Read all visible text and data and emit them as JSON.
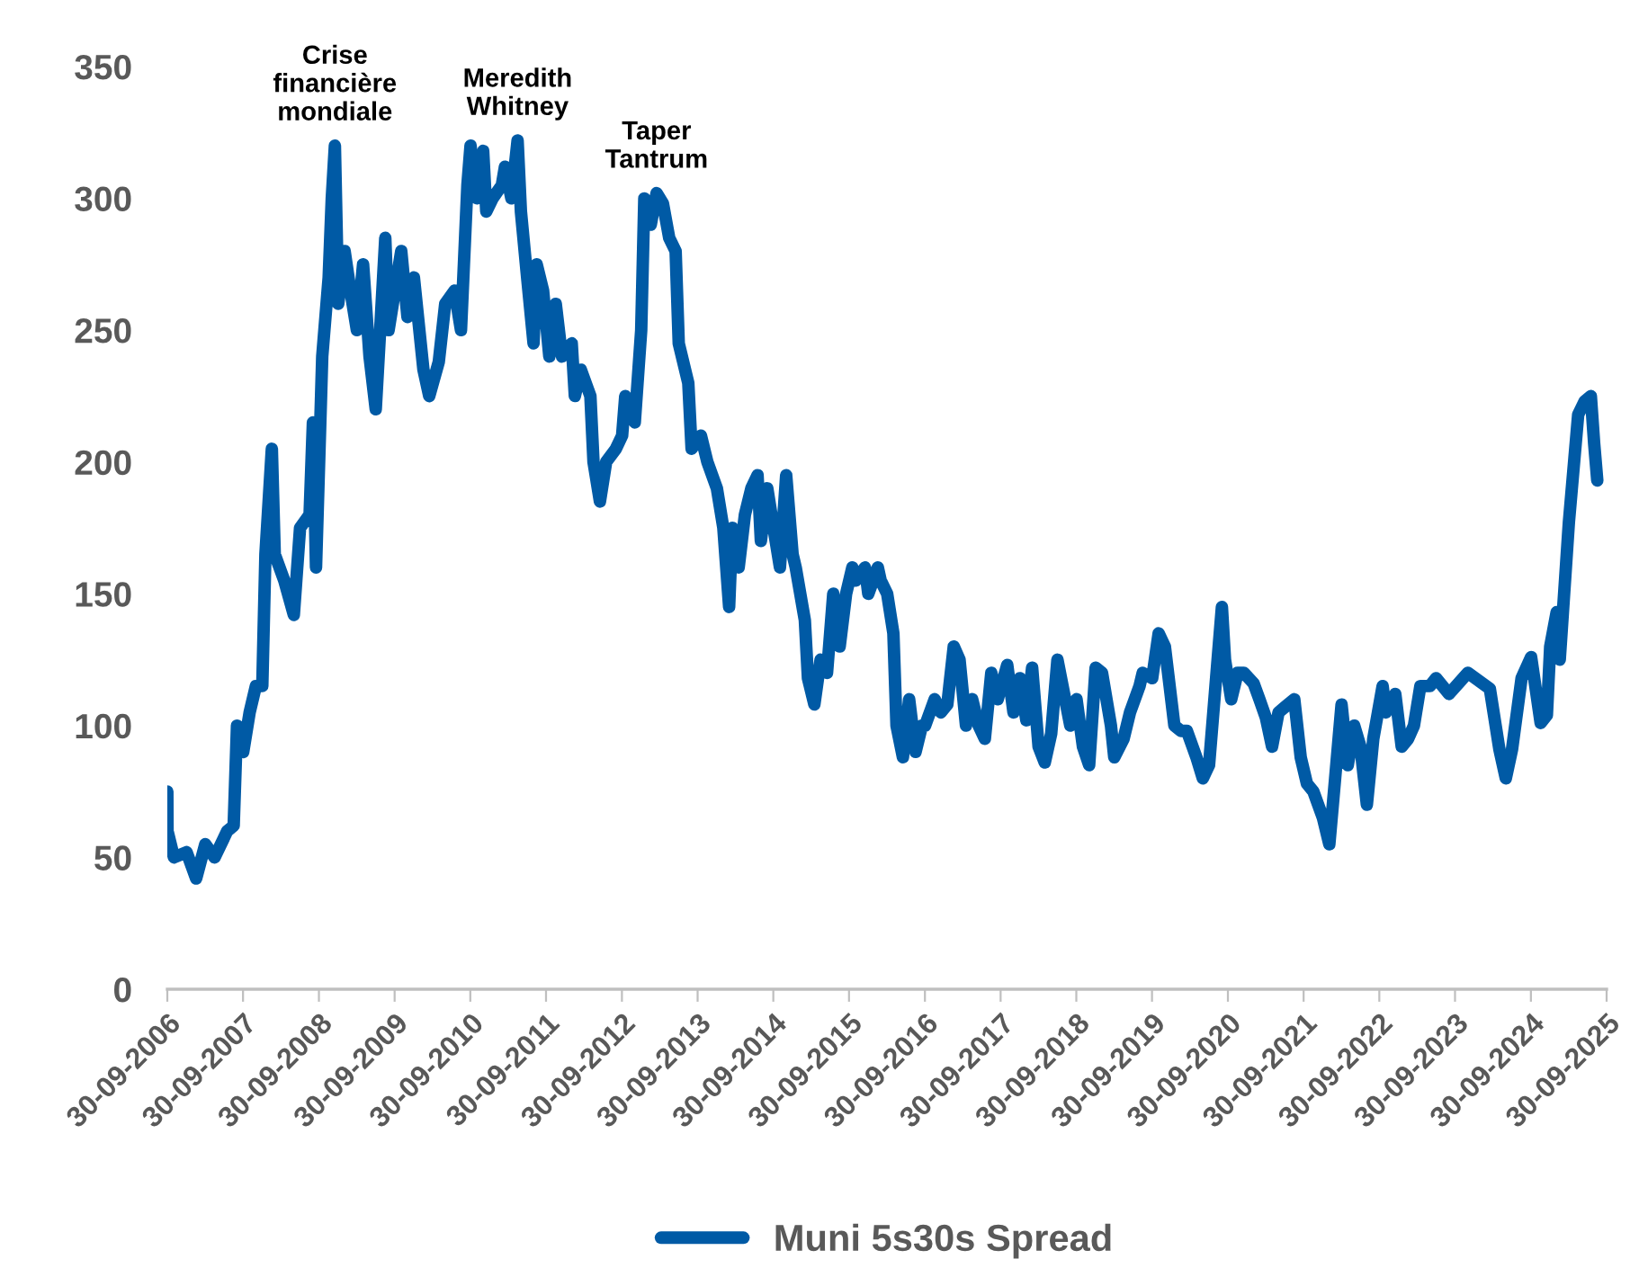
{
  "chart_data": {
    "type": "line",
    "legend": "bottom",
    "grid": false,
    "marker": "none",
    "line_style": "solid",
    "ylim": [
      0,
      350
    ],
    "yticks": [
      0,
      50,
      100,
      150,
      200,
      250,
      300,
      350
    ],
    "xlim": [
      "2006-09-30",
      "2025-09-30"
    ],
    "xticks": [
      {
        "value": "2006-09-30",
        "label": "30-09-2006"
      },
      {
        "value": "2007-09-30",
        "label": "30-09-2007"
      },
      {
        "value": "2008-09-30",
        "label": "30-09-2008"
      },
      {
        "value": "2009-09-30",
        "label": "30-09-2009"
      },
      {
        "value": "2010-09-30",
        "label": "30-09-2010"
      },
      {
        "value": "2011-09-30",
        "label": "30-09-2011"
      },
      {
        "value": "2012-09-30",
        "label": "30-09-2012"
      },
      {
        "value": "2013-09-30",
        "label": "30-09-2013"
      },
      {
        "value": "2014-09-30",
        "label": "30-09-2014"
      },
      {
        "value": "2015-09-30",
        "label": "30-09-2015"
      },
      {
        "value": "2016-09-30",
        "label": "30-09-2016"
      },
      {
        "value": "2017-09-30",
        "label": "30-09-2017"
      },
      {
        "value": "2018-09-30",
        "label": "30-09-2018"
      },
      {
        "value": "2019-09-30",
        "label": "30-09-2019"
      },
      {
        "value": "2020-09-30",
        "label": "30-09-2020"
      },
      {
        "value": "2021-09-30",
        "label": "30-09-2021"
      },
      {
        "value": "2022-09-30",
        "label": "30-09-2022"
      },
      {
        "value": "2023-09-30",
        "label": "30-09-2023"
      },
      {
        "value": "2024-09-30",
        "label": "30-09-2024"
      },
      {
        "value": "2025-09-30",
        "label": "30-09-2025"
      }
    ],
    "annotations": [
      {
        "text": "Crise\nfinancière\nmondiale",
        "x": "2008-12-16",
        "y": 320
      },
      {
        "text": "Meredith\nWhitney",
        "x": "2011-05-16",
        "y": 322
      },
      {
        "text": "Taper\nTantrum",
        "x": "2013-03-16",
        "y": 302
      }
    ],
    "series": [
      {
        "name": "Muni 5s30s Spread",
        "color": "#005aa5",
        "x": [
          "2006-09-30",
          "2006-10-01",
          "2006-11-01",
          "2007-01-01",
          "2007-02-16",
          "2007-04-01",
          "2007-05-16",
          "2007-07-16",
          "2007-08-16",
          "2007-09-01",
          "2007-10-01",
          "2007-11-01",
          "2007-12-01",
          "2008-01-01",
          "2008-01-16",
          "2008-02-16",
          "2008-03-01",
          "2008-04-16",
          "2008-06-01",
          "2008-07-01",
          "2008-08-16",
          "2008-09-01",
          "2008-09-16",
          "2008-10-16",
          "2008-11-16",
          "2008-12-01",
          "2008-12-16",
          "2009-01-01",
          "2009-02-01",
          "2009-03-01",
          "2009-04-01",
          "2009-05-01",
          "2009-06-01",
          "2009-07-01",
          "2009-08-16",
          "2009-09-01",
          "2009-11-01",
          "2009-12-01",
          "2010-01-01",
          "2010-02-16",
          "2010-03-16",
          "2010-05-01",
          "2010-06-01",
          "2010-07-16",
          "2010-08-16",
          "2010-09-16",
          "2010-10-01",
          "2010-11-01",
          "2010-12-01",
          "2010-12-16",
          "2011-01-16",
          "2011-03-01",
          "2011-03-16",
          "2011-04-16",
          "2011-05-16",
          "2011-06-01",
          "2011-07-01",
          "2011-08-01",
          "2011-08-16",
          "2011-09-16",
          "2011-10-16",
          "2011-11-16",
          "2011-12-16",
          "2012-02-01",
          "2012-02-16",
          "2012-03-16",
          "2012-05-01",
          "2012-05-16",
          "2012-06-16",
          "2012-07-16",
          "2012-09-01",
          "2012-10-01",
          "2012-10-16",
          "2012-12-01",
          "2013-01-01",
          "2013-01-16",
          "2013-02-16",
          "2013-03-16",
          "2013-04-16",
          "2013-05-16",
          "2013-06-16",
          "2013-07-01",
          "2013-08-16",
          "2013-09-01",
          "2013-10-16",
          "2013-11-16",
          "2014-01-01",
          "2014-02-01",
          "2014-03-01",
          "2014-03-16",
          "2014-04-16",
          "2014-05-16",
          "2014-06-16",
          "2014-07-16",
          "2014-08-01",
          "2014-09-01",
          "2014-10-01",
          "2014-11-01",
          "2014-12-01",
          "2015-01-01",
          "2015-01-16",
          "2015-03-01",
          "2015-03-16",
          "2015-04-16",
          "2015-05-16",
          "2015-06-16",
          "2015-07-16",
          "2015-08-16",
          "2015-09-16",
          "2015-10-16",
          "2015-11-01",
          "2015-12-16",
          "2016-01-01",
          "2016-02-16",
          "2016-03-01",
          "2016-04-01",
          "2016-05-01",
          "2016-05-16",
          "2016-06-16",
          "2016-07-16",
          "2016-08-16",
          "2016-09-16",
          "2016-10-01",
          "2016-11-16",
          "2016-12-16",
          "2017-01-16",
          "2017-02-16",
          "2017-03-16",
          "2017-04-16",
          "2017-05-16",
          "2017-06-16",
          "2017-07-16",
          "2017-08-16",
          "2017-09-16",
          "2017-11-01",
          "2017-12-01",
          "2018-01-01",
          "2018-02-01",
          "2018-03-01",
          "2018-04-01",
          "2018-05-01",
          "2018-06-01",
          "2018-07-01",
          "2018-09-01",
          "2018-10-01",
          "2018-11-01",
          "2018-12-01",
          "2019-01-01",
          "2019-02-01",
          "2019-03-16",
          "2019-04-01",
          "2019-05-16",
          "2019-06-16",
          "2019-08-01",
          "2019-08-16",
          "2019-10-01",
          "2019-11-01",
          "2019-12-01",
          "2020-01-16",
          "2020-02-16",
          "2020-03-16",
          "2020-05-01",
          "2020-06-01",
          "2020-07-01",
          "2020-08-01",
          "2020-09-01",
          "2020-09-16",
          "2020-10-16",
          "2020-11-16",
          "2020-12-16",
          "2021-02-01",
          "2021-03-01",
          "2021-04-01",
          "2021-05-01",
          "2021-06-01",
          "2021-07-01",
          "2021-08-16",
          "2021-09-16",
          "2021-10-16",
          "2021-11-16",
          "2022-01-01",
          "2022-02-01",
          "2022-03-01",
          "2022-04-01",
          "2022-05-01",
          "2022-06-01",
          "2022-07-01",
          "2022-08-01",
          "2022-09-01",
          "2022-10-16",
          "2022-11-01",
          "2022-12-16",
          "2023-01-16",
          "2023-02-16",
          "2023-03-16",
          "2023-04-16",
          "2023-06-01",
          "2023-07-01",
          "2023-09-01",
          "2023-12-01",
          "2024-03-16",
          "2024-05-01",
          "2024-06-01",
          "2024-07-01",
          "2024-08-16",
          "2024-10-01",
          "2024-11-16",
          "2024-12-16",
          "2025-01-01",
          "2025-02-01",
          "2025-02-16",
          "2025-04-01",
          "2025-05-16",
          "2025-06-16",
          "2025-07-16",
          "2025-08-01",
          "2025-08-16"
        ],
        "values": [
          75,
          60,
          50,
          52,
          42,
          55,
          50,
          60,
          62,
          100,
          90,
          105,
          115,
          115,
          165,
          205,
          165,
          155,
          142,
          175,
          180,
          215,
          160,
          240,
          270,
          300,
          320,
          260,
          280,
          265,
          250,
          275,
          240,
          220,
          285,
          250,
          280,
          255,
          270,
          235,
          225,
          238,
          260,
          265,
          250,
          305,
          320,
          300,
          318,
          295,
          300,
          305,
          312,
          300,
          322,
          295,
          270,
          245,
          275,
          265,
          240,
          260,
          240,
          245,
          225,
          235,
          225,
          200,
          185,
          200,
          205,
          210,
          225,
          215,
          250,
          300,
          290,
          302,
          298,
          285,
          280,
          245,
          230,
          205,
          210,
          200,
          190,
          175,
          145,
          175,
          160,
          180,
          190,
          195,
          170,
          190,
          175,
          160,
          195,
          165,
          160,
          140,
          118,
          108,
          125,
          120,
          150,
          130,
          150,
          160,
          155,
          160,
          150,
          160,
          155,
          150,
          135,
          100,
          88,
          110,
          90,
          100,
          100,
          110,
          105,
          108,
          130,
          125,
          100,
          110,
          100,
          95,
          120,
          110,
          123,
          105,
          118,
          102,
          122,
          92,
          86,
          97,
          125,
          100,
          110,
          92,
          85,
          122,
          120,
          100,
          88,
          95,
          105,
          115,
          120,
          118,
          135,
          130,
          100,
          98,
          98,
          88,
          80,
          85,
          115,
          145,
          125,
          110,
          120,
          120,
          116,
          110,
          103,
          92,
          105,
          107,
          110,
          88,
          78,
          75,
          65,
          55,
          80,
          108,
          85,
          100,
          92,
          70,
          95,
          115,
          105,
          112,
          92,
          95,
          100,
          115,
          115,
          118,
          112,
          120,
          114,
          91,
          80,
          91,
          118,
          126,
          101,
          104,
          130,
          143,
          125,
          177,
          218,
          223,
          225,
          207,
          193
        ]
      }
    ]
  }
}
